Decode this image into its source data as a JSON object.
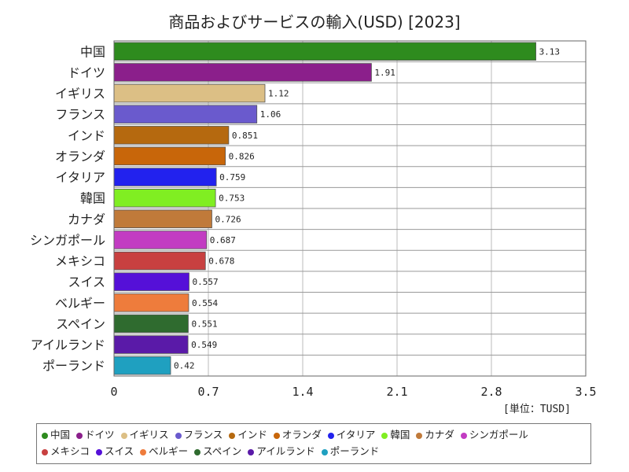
{
  "chart_data": {
    "type": "bar",
    "orientation": "horizontal",
    "title": "商品およびサービスの輸入(USD) [2023]",
    "unit_label": "[単位：TUSD]",
    "xlim": [
      0,
      3.5
    ],
    "xticks": [
      "0",
      "0.7",
      "1.4",
      "2.1",
      "2.8",
      "3.5"
    ],
    "tick_values": [
      0,
      0.7,
      1.4,
      2.1,
      2.8,
      3.5
    ],
    "grid": true,
    "legend_position": "bottom",
    "categories": [
      "中国",
      "ドイツ",
      "イギリス",
      "フランス",
      "インド",
      "オランダ",
      "イタリア",
      "韓国",
      "カナダ",
      "シンガポール",
      "メキシコ",
      "スイス",
      "ベルギー",
      "スペイン",
      "アイルランド",
      "ポーランド"
    ],
    "values": [
      3.13,
      1.91,
      1.12,
      1.06,
      0.851,
      0.826,
      0.759,
      0.753,
      0.726,
      0.687,
      0.678,
      0.557,
      0.554,
      0.551,
      0.549,
      0.42
    ],
    "value_labels": [
      "3.13",
      "1.91",
      "1.12",
      "1.06",
      "0.851",
      "0.826",
      "0.759",
      "0.753",
      "0.726",
      "0.687",
      "0.678",
      "0.557",
      "0.554",
      "0.551",
      "0.549",
      "0.42"
    ],
    "colors": [
      "#2e8b1e",
      "#8b1f8b",
      "#dcbf85",
      "#6a5acd",
      "#b5690f",
      "#c8660a",
      "#2222ee",
      "#80ee22",
      "#c07a3a",
      "#c23cc2",
      "#c84040",
      "#5510d8",
      "#ee7c3c",
      "#2f6b2f",
      "#5a1aa8",
      "#1fa0c0"
    ]
  }
}
